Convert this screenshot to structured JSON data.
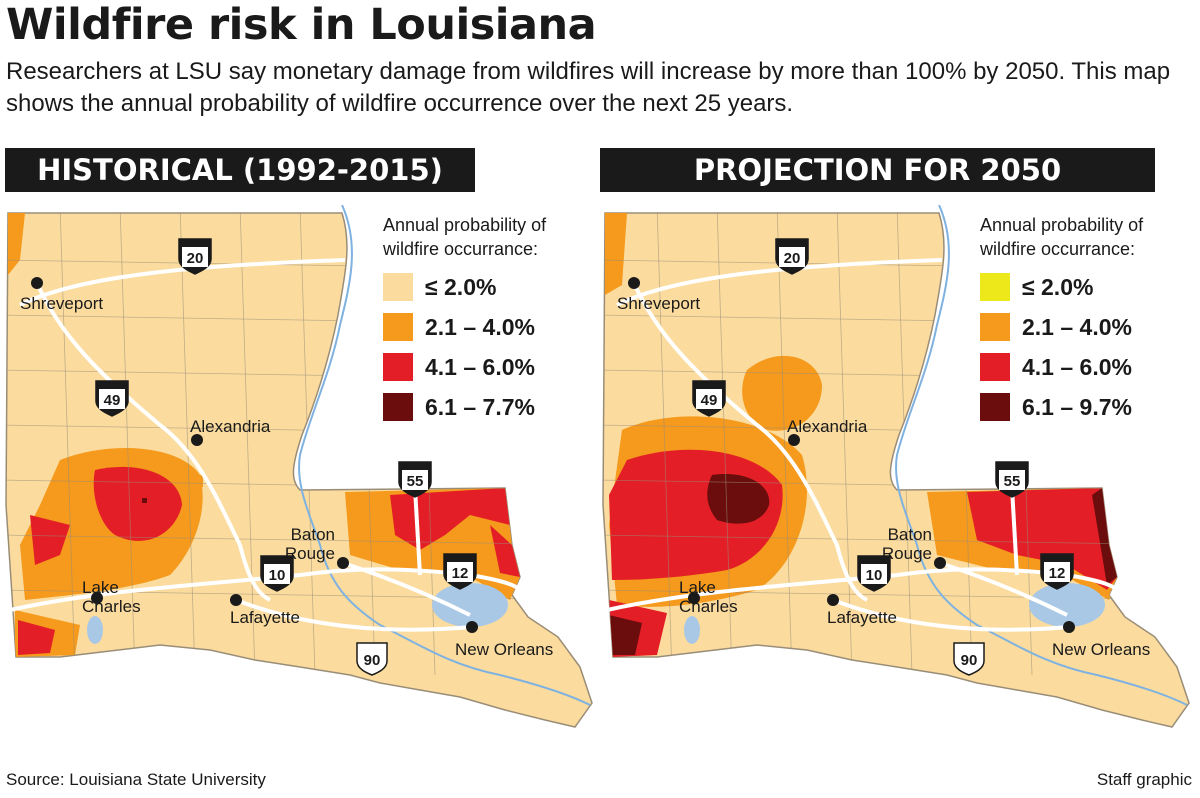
{
  "title": "Wildfire risk in Louisiana",
  "subtitle": "Researchers at LSU say monetary damage from wildfires will increase by more than 100% by 2050. This map shows the annual probability of wildfire occurrence over the next 25 years.",
  "legend_title": "Annual probability of wildfire occurrance:",
  "colors": {
    "land": "#fbdc9e",
    "orange": "#f59a1c",
    "red": "#e41e26",
    "darkred": "#6b0d0d",
    "yellow": "#ece81a",
    "water": "#a9c8e6",
    "river": "#7fb2e0",
    "road": "#ffffff",
    "border": "#9a8d78"
  },
  "panels": [
    {
      "header": "HISTORICAL (1992-2015)",
      "legend": [
        {
          "label": "≤ 2.0%",
          "color": "#fbdc9e"
        },
        {
          "label": "2.1 – 4.0%",
          "color": "#f59a1c"
        },
        {
          "label": "4.1 – 6.0%",
          "color": "#e41e26"
        },
        {
          "label": "6.1 – 7.7%",
          "color": "#6b0d0d"
        }
      ]
    },
    {
      "header": "PROJECTION FOR 2050",
      "legend": [
        {
          "label": "≤ 2.0%",
          "color": "#ece81a"
        },
        {
          "label": "2.1 – 4.0%",
          "color": "#f59a1c"
        },
        {
          "label": "4.1 – 6.0%",
          "color": "#e41e26"
        },
        {
          "label": "6.1 – 9.7%",
          "color": "#6b0d0d"
        }
      ]
    }
  ],
  "cities": [
    "Shreveport",
    "Alexandria",
    "Baton Rouge",
    "Lake Charles",
    "Lafayette",
    "New Orleans"
  ],
  "highways": [
    "20",
    "49",
    "10",
    "55",
    "12",
    "90"
  ],
  "source": "Source: Louisiana State University",
  "credit": "Staff graphic"
}
